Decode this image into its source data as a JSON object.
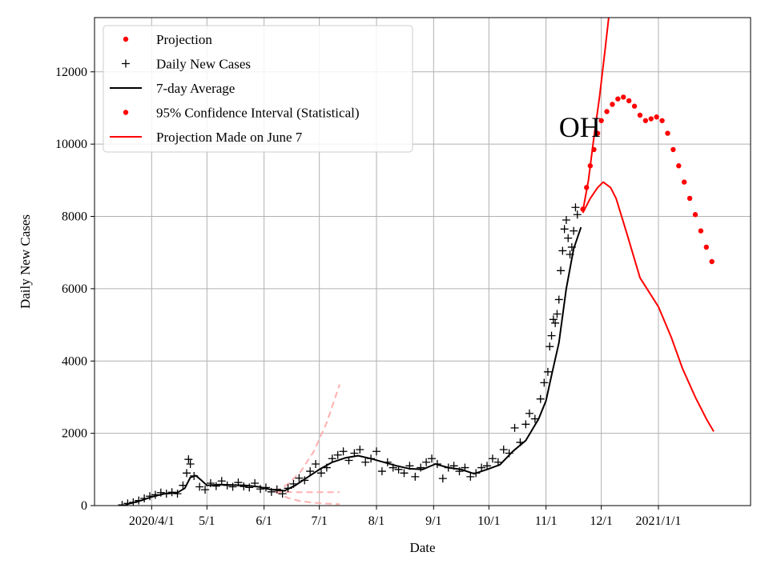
{
  "chart_data": {
    "type": "line",
    "title": "",
    "annotation": "OH",
    "xlabel": "Date",
    "ylabel": "Daily New Cases",
    "xlim": [
      "2020-03-01",
      "2021-02-20"
    ],
    "ylim": [
      0,
      13500
    ],
    "grid": true,
    "legend_position": "top-left",
    "x_ticks": [
      {
        "date": "2020-04-01",
        "label": "2020/4/1"
      },
      {
        "date": "2020-05-01",
        "label": "5/1"
      },
      {
        "date": "2020-06-01",
        "label": "6/1"
      },
      {
        "date": "2020-07-01",
        "label": "7/1"
      },
      {
        "date": "2020-08-01",
        "label": "8/1"
      },
      {
        "date": "2020-09-01",
        "label": "9/1"
      },
      {
        "date": "2020-10-01",
        "label": "10/1"
      },
      {
        "date": "2020-11-01",
        "label": "11/1"
      },
      {
        "date": "2020-12-01",
        "label": "12/1"
      },
      {
        "date": "2021-01-01",
        "label": "2021/1/1"
      }
    ],
    "y_ticks": [
      0,
      2000,
      4000,
      6000,
      8000,
      10000,
      12000
    ],
    "legend": [
      {
        "label": "Projection",
        "marker": "dot",
        "color": "#ff0000"
      },
      {
        "label": "Daily New Cases",
        "marker": "plus",
        "color": "#000000"
      },
      {
        "label": "7-day Average",
        "marker": "line",
        "color": "#000000"
      },
      {
        "label": "95% Confidence Interval (Statistical)",
        "marker": "dot",
        "color": "#ff0000"
      },
      {
        "label": "Projection Made on June 7",
        "marker": "line",
        "color": "#ff0000"
      }
    ],
    "series": [
      {
        "name": "7-day Average",
        "style": "line",
        "color": "#000000",
        "points": [
          [
            "2020-03-18",
            30
          ],
          [
            "2020-03-25",
            120
          ],
          [
            "2020-04-01",
            240
          ],
          [
            "2020-04-08",
            330
          ],
          [
            "2020-04-15",
            360
          ],
          [
            "2020-04-19",
            480
          ],
          [
            "2020-04-22",
            780
          ],
          [
            "2020-04-25",
            830
          ],
          [
            "2020-04-28",
            700
          ],
          [
            "2020-05-01",
            560
          ],
          [
            "2020-05-08",
            580
          ],
          [
            "2020-05-15",
            570
          ],
          [
            "2020-05-22",
            560
          ],
          [
            "2020-05-29",
            520
          ],
          [
            "2020-06-05",
            440
          ],
          [
            "2020-06-12",
            410
          ],
          [
            "2020-06-18",
            560
          ],
          [
            "2020-06-25",
            800
          ],
          [
            "2020-07-01",
            1000
          ],
          [
            "2020-07-08",
            1200
          ],
          [
            "2020-07-15",
            1320
          ],
          [
            "2020-07-22",
            1380
          ],
          [
            "2020-07-29",
            1300
          ],
          [
            "2020-08-05",
            1200
          ],
          [
            "2020-08-12",
            1100
          ],
          [
            "2020-08-19",
            1020
          ],
          [
            "2020-08-26",
            1000
          ],
          [
            "2020-09-02",
            1150
          ],
          [
            "2020-09-09",
            1050
          ],
          [
            "2020-09-16",
            1000
          ],
          [
            "2020-09-23",
            880
          ],
          [
            "2020-09-30",
            1000
          ],
          [
            "2020-10-07",
            1130
          ],
          [
            "2020-10-14",
            1500
          ],
          [
            "2020-10-21",
            1800
          ],
          [
            "2020-10-28",
            2400
          ],
          [
            "2020-11-01",
            2900
          ],
          [
            "2020-11-04",
            3600
          ],
          [
            "2020-11-08",
            4500
          ],
          [
            "2020-11-12",
            6000
          ],
          [
            "2020-11-16",
            7100
          ],
          [
            "2020-11-20",
            7700
          ]
        ]
      },
      {
        "name": "Daily New Cases",
        "style": "plus",
        "color": "#000000",
        "points": [
          [
            "2020-03-16",
            20
          ],
          [
            "2020-03-19",
            60
          ],
          [
            "2020-03-22",
            90
          ],
          [
            "2020-03-25",
            140
          ],
          [
            "2020-03-28",
            200
          ],
          [
            "2020-03-31",
            260
          ],
          [
            "2020-04-03",
            300
          ],
          [
            "2020-04-06",
            360
          ],
          [
            "2020-04-09",
            330
          ],
          [
            "2020-04-12",
            370
          ],
          [
            "2020-04-15",
            330
          ],
          [
            "2020-04-18",
            560
          ],
          [
            "2020-04-20",
            900
          ],
          [
            "2020-04-21",
            1280
          ],
          [
            "2020-04-22",
            1150
          ],
          [
            "2020-04-24",
            820
          ],
          [
            "2020-04-27",
            520
          ],
          [
            "2020-04-30",
            440
          ],
          [
            "2020-05-03",
            620
          ],
          [
            "2020-05-06",
            540
          ],
          [
            "2020-05-09",
            680
          ],
          [
            "2020-05-12",
            560
          ],
          [
            "2020-05-15",
            520
          ],
          [
            "2020-05-18",
            640
          ],
          [
            "2020-05-21",
            530
          ],
          [
            "2020-05-24",
            500
          ],
          [
            "2020-05-27",
            620
          ],
          [
            "2020-05-30",
            460
          ],
          [
            "2020-06-02",
            500
          ],
          [
            "2020-06-05",
            380
          ],
          [
            "2020-06-08",
            450
          ],
          [
            "2020-06-11",
            330
          ],
          [
            "2020-06-14",
            480
          ],
          [
            "2020-06-17",
            600
          ],
          [
            "2020-06-20",
            760
          ],
          [
            "2020-06-23",
            700
          ],
          [
            "2020-06-26",
            950
          ],
          [
            "2020-06-29",
            1150
          ],
          [
            "2020-07-02",
            900
          ],
          [
            "2020-07-05",
            1050
          ],
          [
            "2020-07-08",
            1300
          ],
          [
            "2020-07-11",
            1400
          ],
          [
            "2020-07-14",
            1500
          ],
          [
            "2020-07-17",
            1250
          ],
          [
            "2020-07-20",
            1450
          ],
          [
            "2020-07-23",
            1550
          ],
          [
            "2020-07-26",
            1200
          ],
          [
            "2020-07-29",
            1300
          ],
          [
            "2020-08-01",
            1500
          ],
          [
            "2020-08-04",
            950
          ],
          [
            "2020-08-07",
            1200
          ],
          [
            "2020-08-10",
            1050
          ],
          [
            "2020-08-13",
            1000
          ],
          [
            "2020-08-16",
            900
          ],
          [
            "2020-08-19",
            1100
          ],
          [
            "2020-08-22",
            800
          ],
          [
            "2020-08-25",
            1050
          ],
          [
            "2020-08-28",
            1200
          ],
          [
            "2020-08-31",
            1300
          ],
          [
            "2020-09-03",
            1150
          ],
          [
            "2020-09-06",
            750
          ],
          [
            "2020-09-09",
            1050
          ],
          [
            "2020-09-12",
            1100
          ],
          [
            "2020-09-15",
            950
          ],
          [
            "2020-09-18",
            1050
          ],
          [
            "2020-09-21",
            800
          ],
          [
            "2020-09-24",
            900
          ],
          [
            "2020-09-27",
            1050
          ],
          [
            "2020-09-30",
            1100
          ],
          [
            "2020-10-03",
            1300
          ],
          [
            "2020-10-06",
            1200
          ],
          [
            "2020-10-09",
            1550
          ],
          [
            "2020-10-12",
            1450
          ],
          [
            "2020-10-15",
            2150
          ],
          [
            "2020-10-18",
            1750
          ],
          [
            "2020-10-21",
            2250
          ],
          [
            "2020-10-23",
            2550
          ],
          [
            "2020-10-26",
            2400
          ],
          [
            "2020-10-29",
            2950
          ],
          [
            "2020-10-31",
            3400
          ],
          [
            "2020-11-02",
            3700
          ],
          [
            "2020-11-03",
            4400
          ],
          [
            "2020-11-04",
            4700
          ],
          [
            "2020-11-05",
            5150
          ],
          [
            "2020-11-06",
            5050
          ],
          [
            "2020-11-07",
            5300
          ],
          [
            "2020-11-08",
            5700
          ],
          [
            "2020-11-09",
            6500
          ],
          [
            "2020-11-10",
            7050
          ],
          [
            "2020-11-11",
            7650
          ],
          [
            "2020-11-12",
            7900
          ],
          [
            "2020-11-13",
            7400
          ],
          [
            "2020-11-14",
            6950
          ],
          [
            "2020-11-15",
            7150
          ],
          [
            "2020-11-16",
            7600
          ],
          [
            "2020-11-17",
            8250
          ],
          [
            "2020-11-18",
            8050
          ]
        ]
      },
      {
        "name": "Projection",
        "style": "dots",
        "color": "#ff0000",
        "points": [
          [
            "2020-11-21",
            8200
          ],
          [
            "2020-11-23",
            8800
          ],
          [
            "2020-11-25",
            9400
          ],
          [
            "2020-11-27",
            9850
          ],
          [
            "2020-11-29",
            10300
          ],
          [
            "2020-12-01",
            10650
          ],
          [
            "2020-12-04",
            10900
          ],
          [
            "2020-12-07",
            11100
          ],
          [
            "2020-12-10",
            11250
          ],
          [
            "2020-12-13",
            11300
          ],
          [
            "2020-12-16",
            11200
          ],
          [
            "2020-12-19",
            11050
          ],
          [
            "2020-12-22",
            10800
          ],
          [
            "2020-12-25",
            10650
          ],
          [
            "2020-12-28",
            10700
          ],
          [
            "2020-12-31",
            10750
          ],
          [
            "2021-01-03",
            10650
          ],
          [
            "2021-01-06",
            10300
          ],
          [
            "2021-01-09",
            9850
          ],
          [
            "2021-01-12",
            9400
          ],
          [
            "2021-01-15",
            8950
          ],
          [
            "2021-01-18",
            8500
          ],
          [
            "2021-01-21",
            8050
          ],
          [
            "2021-01-24",
            7600
          ],
          [
            "2021-01-27",
            7150
          ],
          [
            "2021-01-30",
            6750
          ]
        ]
      },
      {
        "name": "95% Confidence Interval (Statistical)",
        "style": "line",
        "color": "#ff0000",
        "points": [
          [
            "2020-11-21",
            8150
          ],
          [
            "2020-11-24",
            9000
          ],
          [
            "2020-11-27",
            10200
          ],
          [
            "2020-11-30",
            11300
          ],
          [
            "2020-12-03",
            12600
          ],
          [
            "2020-12-05",
            13500
          ]
        ]
      },
      {
        "name": "95% Confidence Interval (Statistical)",
        "style": "line",
        "color": "#ff0000",
        "points": [
          [
            "2020-11-21",
            8100
          ],
          [
            "2020-11-25",
            8500
          ],
          [
            "2020-11-29",
            8800
          ],
          [
            "2020-12-02",
            8950
          ],
          [
            "2020-12-06",
            8800
          ],
          [
            "2020-12-09",
            8500
          ],
          [
            "2020-12-15",
            7500
          ],
          [
            "2020-12-22",
            6300
          ],
          [
            "2021-01-01",
            5500
          ],
          [
            "2021-01-08",
            4650
          ],
          [
            "2021-01-14",
            3800
          ],
          [
            "2021-01-21",
            3000
          ],
          [
            "2021-01-27",
            2400
          ],
          [
            "2021-01-31",
            2050
          ]
        ]
      },
      {
        "name": "Projection Made on June 7",
        "style": "dashed",
        "color": "#ffb0b0",
        "points": [
          [
            "2020-06-07",
            380
          ],
          [
            "2020-06-14",
            600
          ],
          [
            "2020-06-21",
            950
          ],
          [
            "2020-06-28",
            1500
          ],
          [
            "2020-07-05",
            2300
          ],
          [
            "2020-07-12",
            3350
          ]
        ]
      },
      {
        "name": "Projection Made on June 7",
        "style": "dashed",
        "color": "#ffb0b0",
        "points": [
          [
            "2020-06-07",
            380
          ],
          [
            "2020-06-14",
            375
          ],
          [
            "2020-06-21",
            370
          ],
          [
            "2020-06-28",
            370
          ],
          [
            "2020-07-05",
            370
          ],
          [
            "2020-07-12",
            370
          ]
        ]
      },
      {
        "name": "Projection Made on June 7",
        "style": "dashed",
        "color": "#ffb0b0",
        "points": [
          [
            "2020-06-07",
            380
          ],
          [
            "2020-06-14",
            210
          ],
          [
            "2020-06-21",
            120
          ],
          [
            "2020-06-28",
            80
          ],
          [
            "2020-07-05",
            55
          ],
          [
            "2020-07-12",
            40
          ]
        ]
      }
    ]
  }
}
